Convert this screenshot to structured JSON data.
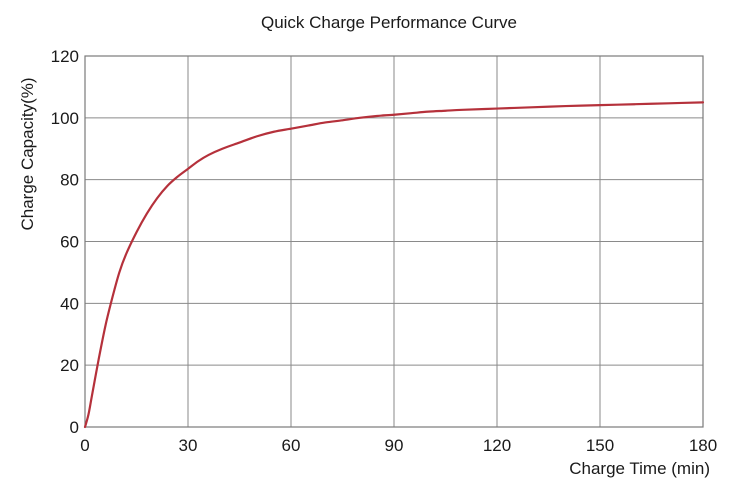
{
  "chart_data": {
    "type": "line",
    "title": "Quick Charge Performance Curve",
    "xlabel": "Charge Time (min)",
    "ylabel": "Charge Capacity(%)",
    "xlim": [
      0,
      180
    ],
    "ylim": [
      0,
      120
    ],
    "xticks": [
      0,
      30,
      60,
      90,
      120,
      150,
      180
    ],
    "yticks": [
      0,
      20,
      40,
      60,
      80,
      100,
      120
    ],
    "grid": true,
    "legend": "none",
    "series": [
      {
        "color": "#b5313b",
        "x": [
          0,
          1,
          2,
          4,
          6,
          8,
          10,
          12,
          15,
          18,
          21,
          24,
          27,
          30,
          33,
          36,
          40,
          45,
          50,
          55,
          60,
          65,
          70,
          75,
          80,
          85,
          90,
          95,
          100,
          105,
          110,
          120,
          130,
          140,
          150,
          160,
          170,
          180
        ],
        "y": [
          0,
          4,
          10,
          22,
          33,
          42,
          50,
          56,
          63,
          69,
          74,
          78,
          81,
          83.5,
          86,
          88,
          90,
          92,
          94,
          95.5,
          96.5,
          97.5,
          98.5,
          99.2,
          100,
          100.6,
          101,
          101.5,
          102,
          102.3,
          102.6,
          103,
          103.4,
          103.8,
          104.1,
          104.4,
          104.7,
          105
        ]
      }
    ]
  }
}
